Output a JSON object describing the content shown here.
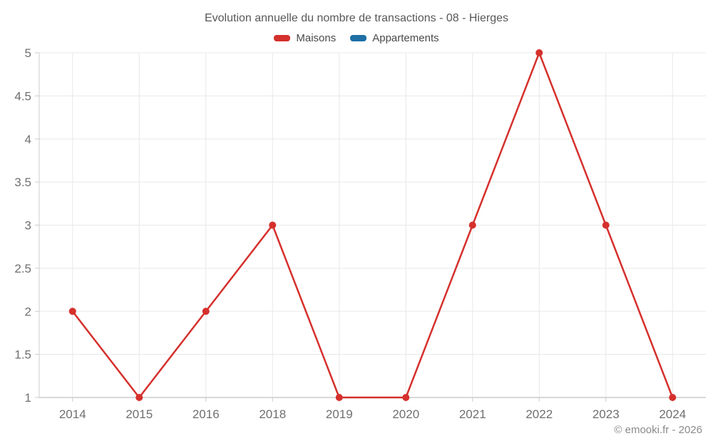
{
  "chart_data": {
    "type": "line",
    "title": "Evolution annuelle du nombre de transactions - 08 - Hierges",
    "categories": [
      "2014",
      "2015",
      "2016",
      "2018",
      "2019",
      "2020",
      "2021",
      "2022",
      "2023",
      "2024"
    ],
    "series": [
      {
        "name": "Maisons",
        "color": "#d5302c",
        "values": [
          2,
          1,
          2,
          3,
          1,
          1,
          3,
          5,
          3,
          1
        ]
      },
      {
        "name": "Appartements",
        "color": "#1d6fa5",
        "values": []
      }
    ],
    "xlabel": "",
    "ylabel": "",
    "ylim": [
      1,
      5
    ],
    "yticks": [
      1,
      1.5,
      2,
      2.5,
      3,
      3.5,
      4,
      4.5,
      5
    ],
    "grid": true,
    "legend_position": "top"
  },
  "footer": {
    "copyright": "© emooki.fr - 2026"
  }
}
